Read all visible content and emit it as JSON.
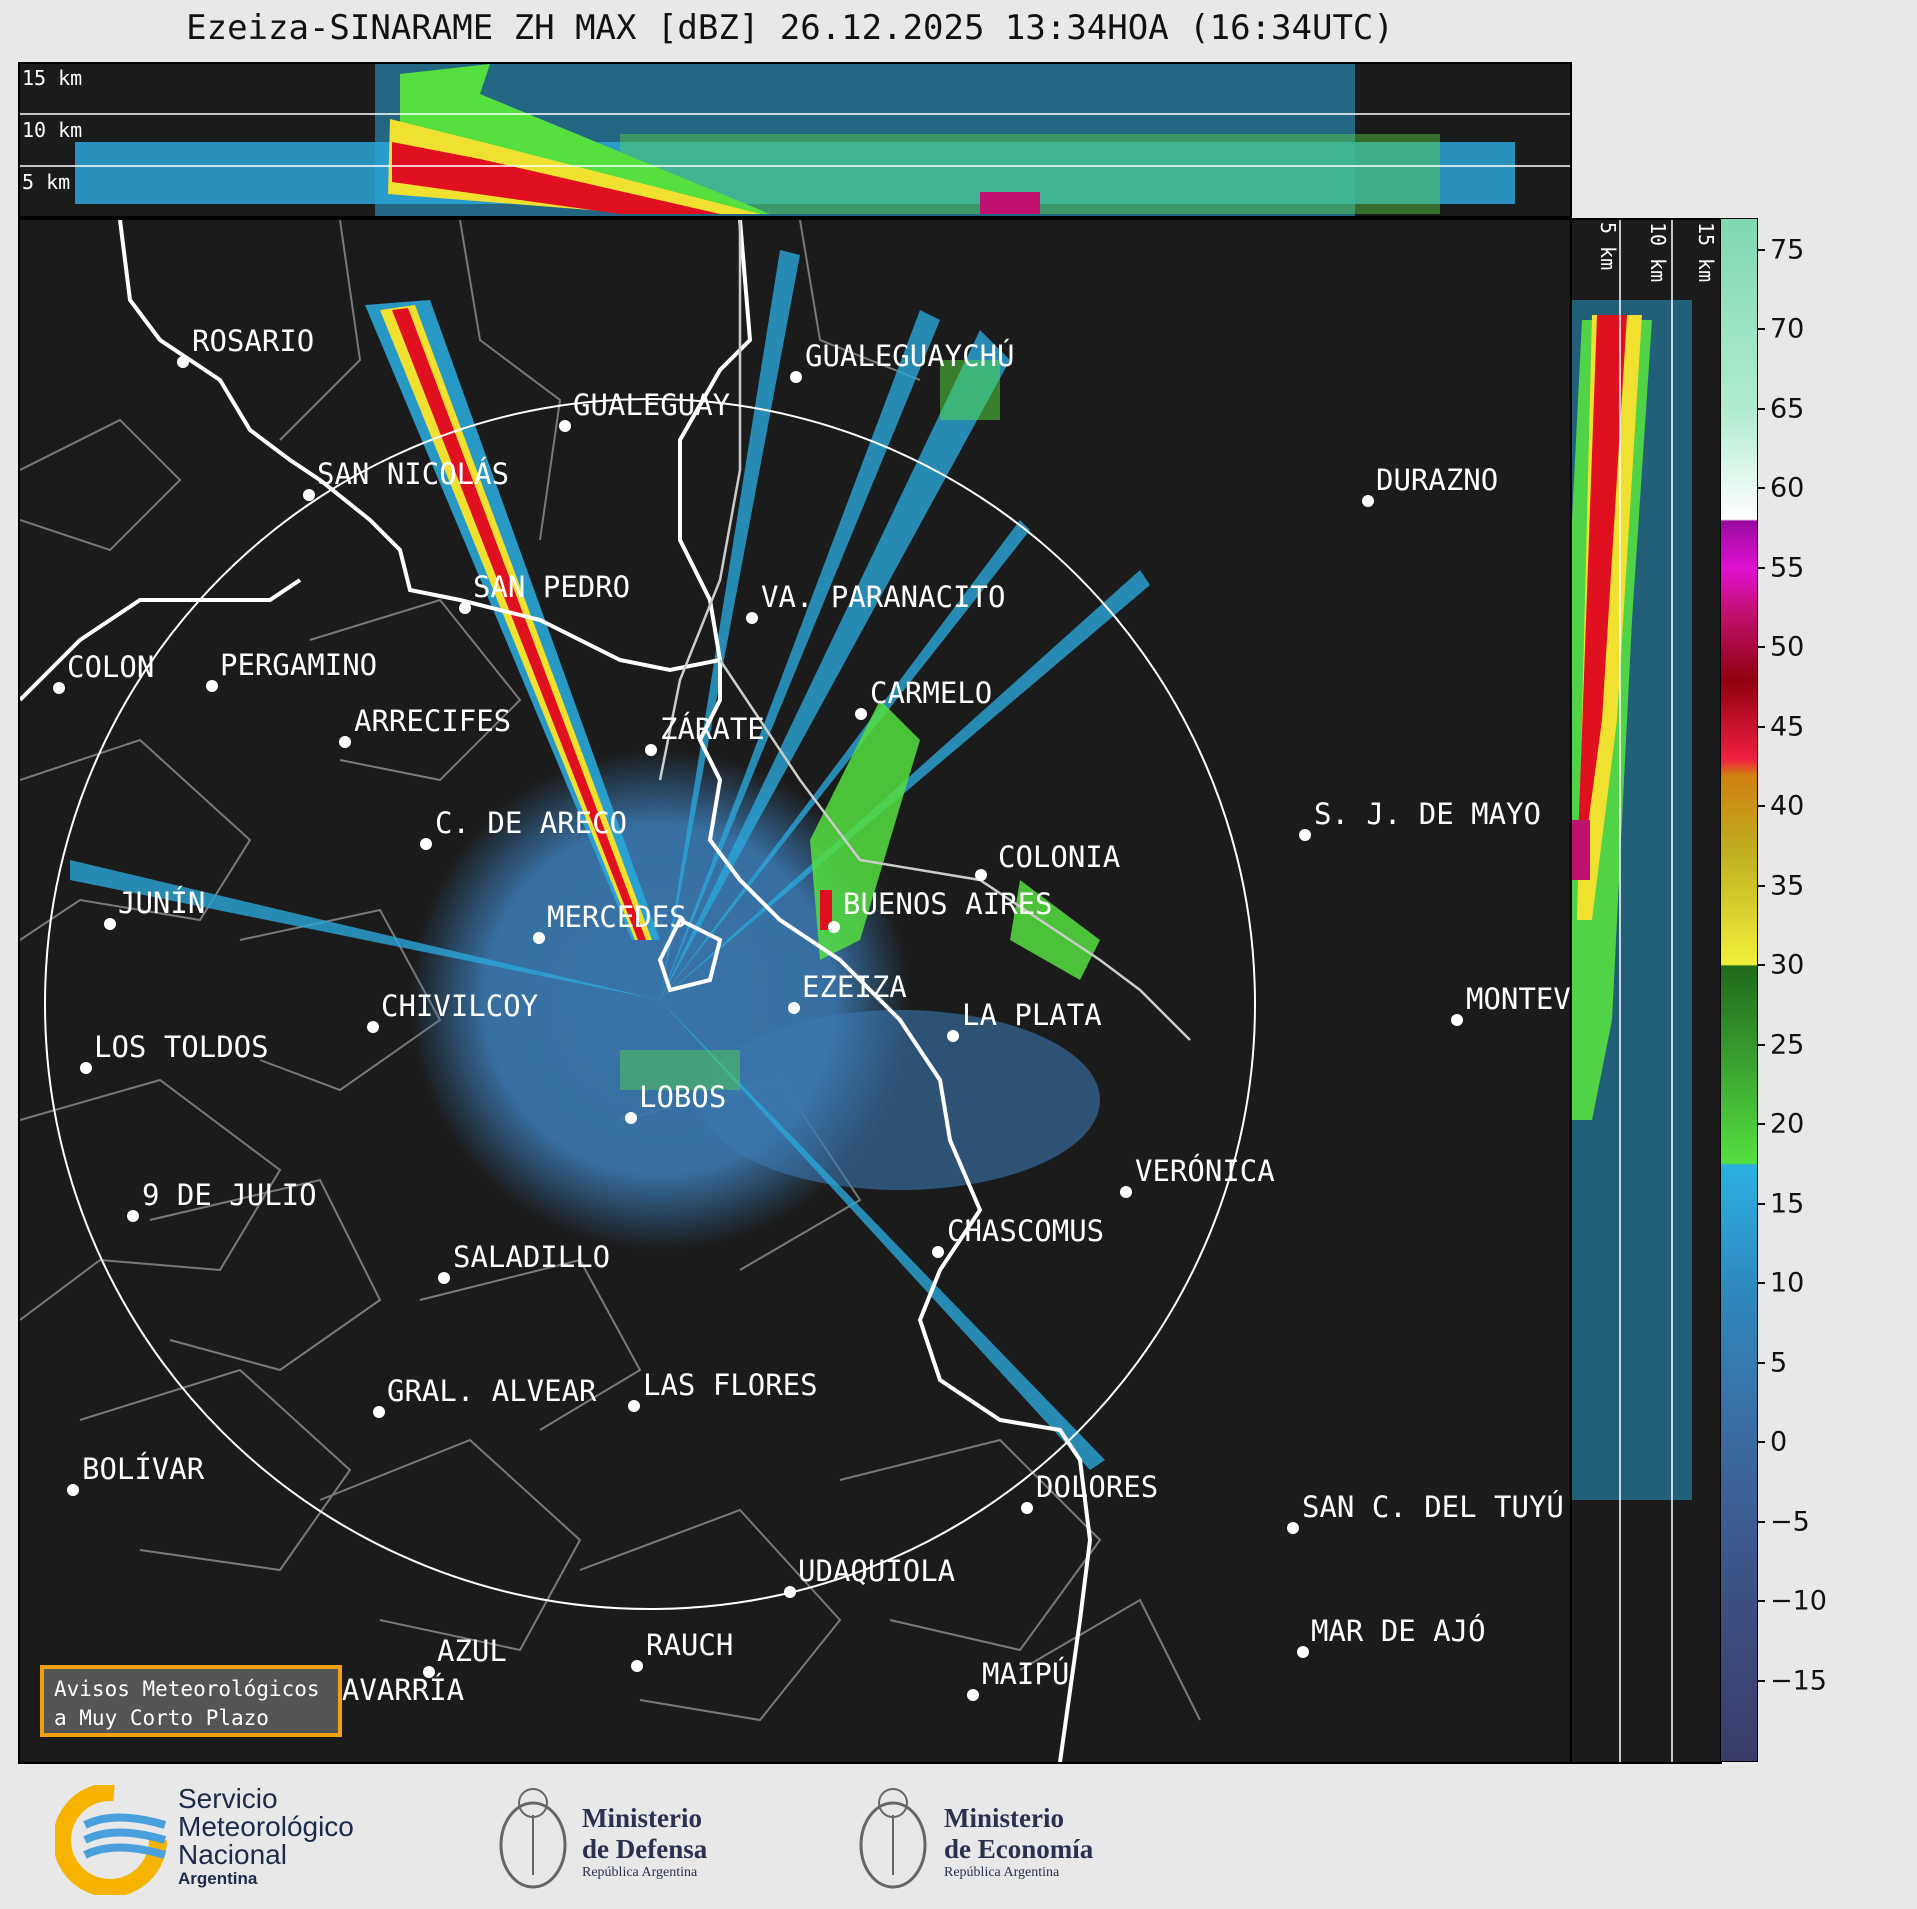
{
  "title": "Ezeiza-SINARAME ZH MAX [dBZ] 26.12.2025 13:34HOA (16:34UTC)",
  "top_panel": {
    "altitudes": [
      "15 km",
      "10 km",
      "5 km"
    ]
  },
  "side_panel": {
    "altitudes": [
      "5 km",
      "10 km",
      "15 km"
    ]
  },
  "cities": [
    {
      "name": "ROSARIO"
    },
    {
      "name": "GUALEGUAYCHÚ"
    },
    {
      "name": "GUALEGUAY"
    },
    {
      "name": "SAN NICOLÁS"
    },
    {
      "name": "DURAZNO"
    },
    {
      "name": "SAN PEDRO"
    },
    {
      "name": "VA. PARANACITO"
    },
    {
      "name": "COLON"
    },
    {
      "name": "PERGAMINO"
    },
    {
      "name": "CARMELO"
    },
    {
      "name": "ARRECIFES"
    },
    {
      "name": "ZÁRATE"
    },
    {
      "name": "S. J. DE MAYO"
    },
    {
      "name": "C. DE ARECO"
    },
    {
      "name": "COLONIA"
    },
    {
      "name": "JUNÍN"
    },
    {
      "name": "BUENOS AIRES"
    },
    {
      "name": "MERCEDES"
    },
    {
      "name": "EZEIZA"
    },
    {
      "name": "MONTEV"
    },
    {
      "name": "CHIVILCOY"
    },
    {
      "name": "LA PLATA"
    },
    {
      "name": "LOS TOLDOS"
    },
    {
      "name": "LOBOS"
    },
    {
      "name": "VERÓNICA"
    },
    {
      "name": "9 DE JULIO"
    },
    {
      "name": "CHASCOMUS"
    },
    {
      "name": "SALADILLO"
    },
    {
      "name": "GRAL. ALVEAR"
    },
    {
      "name": "LAS FLORES"
    },
    {
      "name": "BOLÍVAR"
    },
    {
      "name": "DOLORES"
    },
    {
      "name": "SAN C. DEL TUYÚ"
    },
    {
      "name": "UDAQUIOLA"
    },
    {
      "name": "MAR DE AJÓ"
    },
    {
      "name": "RAUCH"
    },
    {
      "name": "AZUL"
    },
    {
      "name": "OLAVARRÍA"
    },
    {
      "name": "MAIPÚ"
    }
  ],
  "avisos": {
    "line1": "Avisos Meteorológicos",
    "line2": "a Muy Corto Plazo"
  },
  "colorbar": {
    "unit": "dBZ",
    "ticks": [
      "75",
      "70",
      "65",
      "60",
      "55",
      "50",
      "45",
      "40",
      "35",
      "30",
      "25",
      "20",
      "15",
      "10",
      "5",
      "0",
      "−5",
      "−10",
      "−15"
    ],
    "tick_values": [
      75,
      70,
      65,
      60,
      55,
      50,
      45,
      40,
      35,
      30,
      25,
      20,
      15,
      10,
      5,
      0,
      -5,
      -10,
      -15
    ],
    "range": [
      -20,
      77
    ],
    "stops": [
      {
        "v": -20,
        "color": "#3a3c6a"
      },
      {
        "v": -10,
        "color": "#3d4f82"
      },
      {
        "v": 0,
        "color": "#3a6aa0"
      },
      {
        "v": 10,
        "color": "#2f8ac0"
      },
      {
        "v": 17.5,
        "color": "#2ab0e0"
      },
      {
        "v": 17.6,
        "color": "#55e040"
      },
      {
        "v": 24,
        "color": "#3aa030"
      },
      {
        "v": 30,
        "color": "#1f6a1a"
      },
      {
        "v": 30.1,
        "color": "#f0f03a"
      },
      {
        "v": 37,
        "color": "#c0b020"
      },
      {
        "v": 42,
        "color": "#d08010"
      },
      {
        "v": 43,
        "color": "#f02040"
      },
      {
        "v": 48,
        "color": "#900010"
      },
      {
        "v": 52,
        "color": "#c0106a"
      },
      {
        "v": 55,
        "color": "#e010d0"
      },
      {
        "v": 58,
        "color": "#9a0aa0"
      },
      {
        "v": 58.1,
        "color": "#ffffff"
      },
      {
        "v": 65,
        "color": "#b0ecd0"
      },
      {
        "v": 77,
        "color": "#7fd8b0"
      }
    ]
  },
  "footer": {
    "smn": [
      "Servicio",
      "Meteorológico",
      "Nacional",
      "Argentina"
    ],
    "defensa": [
      "Ministerio",
      "de Defensa",
      "República Argentina"
    ],
    "economia": [
      "Ministerio",
      "de Economía",
      "República Argentina"
    ]
  },
  "colors": {
    "background": "#1b1b1b",
    "coast": "#ffffff",
    "borders": "#7a7a7a",
    "echo_weak": "#3a78b0",
    "echo_light": "#2aa6d8",
    "echo_moderate": "#55e040",
    "echo_strong": "#e01020",
    "accent": "#f0a010"
  }
}
